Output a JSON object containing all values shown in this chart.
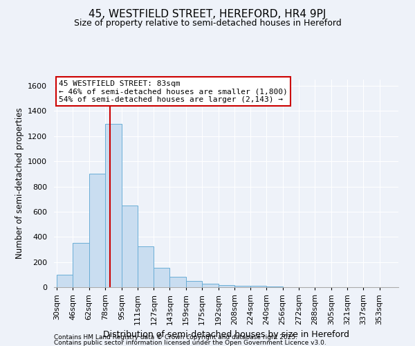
{
  "title": "45, WESTFIELD STREET, HEREFORD, HR4 9PJ",
  "subtitle": "Size of property relative to semi-detached houses in Hereford",
  "xlabel": "Distribution of semi-detached houses by size in Hereford",
  "ylabel": "Number of semi-detached properties",
  "bin_starts": [
    30,
    46,
    62,
    78,
    95,
    111,
    127,
    143,
    159,
    175,
    192,
    208,
    224,
    240,
    256,
    272,
    288,
    305,
    321,
    337,
    353
  ],
  "bin_labels": [
    "30sqm",
    "46sqm",
    "62sqm",
    "78sqm",
    "95sqm",
    "111sqm",
    "127sqm",
    "143sqm",
    "159sqm",
    "175sqm",
    "192sqm",
    "208sqm",
    "224sqm",
    "240sqm",
    "256sqm",
    "272sqm",
    "288sqm",
    "305sqm",
    "321sqm",
    "337sqm",
    "353sqm"
  ],
  "counts": [
    100,
    350,
    900,
    1300,
    650,
    325,
    155,
    80,
    50,
    30,
    15,
    10,
    10,
    5,
    2,
    2,
    1,
    1,
    0,
    0,
    0
  ],
  "bar_color": "#c9ddf0",
  "bar_edge_color": "#6aaed6",
  "vline_x": 83,
  "vline_color": "#cc0000",
  "annotation_text": "45 WESTFIELD STREET: 83sqm\n← 46% of semi-detached houses are smaller (1,800)\n54% of semi-detached houses are larger (2,143) →",
  "annotation_box_edge": "#cc0000",
  "annotation_box_face": "#ffffff",
  "ylim": [
    0,
    1650
  ],
  "yticks": [
    0,
    200,
    400,
    600,
    800,
    1000,
    1200,
    1400,
    1600
  ],
  "bg_color": "#eef2f9",
  "footer1": "Contains HM Land Registry data © Crown copyright and database right 2025.",
  "footer2": "Contains public sector information licensed under the Open Government Licence v3.0.",
  "title_fontsize": 11,
  "subtitle_fontsize": 9,
  "xlabel_fontsize": 9,
  "ylabel_fontsize": 8.5,
  "tick_fontsize": 8,
  "annot_fontsize": 8
}
